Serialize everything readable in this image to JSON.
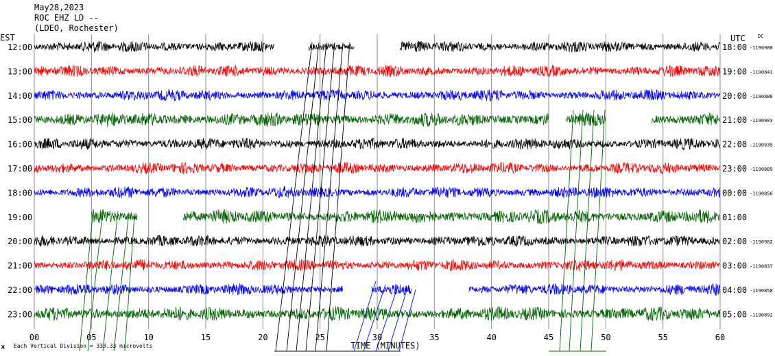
{
  "header": {
    "date": "May28,2023",
    "station": "ROC EHZ LD --",
    "network": "(LDEO, Rochester)"
  },
  "labels": {
    "left_zone": "EST",
    "right_zone": "UTC",
    "dc_header": "DC",
    "xlabel": "TIME (MINUTES)",
    "footnote": "Each Vertical Division = 333.33 microvolts",
    "corner_mark": "Ж"
  },
  "chart_data": {
    "type": "line",
    "title": "",
    "xlabel": "TIME (MINUTES)",
    "xlim": [
      0,
      60
    ],
    "x_ticks": [
      "00",
      "05",
      "10",
      "15",
      "20",
      "25",
      "30",
      "35",
      "40",
      "45",
      "50",
      "55",
      "60"
    ],
    "grid_vertical": true,
    "trace_colors": [
      "#000000",
      "#ff0000",
      "#0000ff",
      "#006400"
    ],
    "rows": [
      {
        "est": "12:00",
        "utc": "18:00",
        "dc": "-1190900",
        "color": "#000000",
        "gaps": [
          [
            21,
            24
          ],
          [
            28,
            32
          ]
        ]
      },
      {
        "est": "13:00",
        "utc": "19:00",
        "dc": "-1190841",
        "color": "#ff0000",
        "gaps": []
      },
      {
        "est": "14:00",
        "utc": "20:00",
        "dc": "-1190880",
        "color": "#0000ff",
        "gaps": []
      },
      {
        "est": "15:00",
        "utc": "21:00",
        "dc": "-1190903",
        "color": "#006400",
        "gaps": [
          [
            45,
            46.5
          ],
          [
            50,
            54
          ]
        ]
      },
      {
        "est": "16:00",
        "utc": "22:00",
        "dc": "-1190935",
        "color": "#000000",
        "gaps": []
      },
      {
        "est": "17:00",
        "utc": "23:00",
        "dc": "-1190889",
        "color": "#ff0000",
        "gaps": []
      },
      {
        "est": "18:00",
        "utc": "00:00",
        "dc": "-1190856",
        "color": "#0000ff",
        "gaps": []
      },
      {
        "est": "19:00",
        "utc": "01:00",
        "dc": "",
        "color": "#006400",
        "gaps": [
          [
            0,
            5
          ],
          [
            9,
            13
          ]
        ]
      },
      {
        "est": "20:00",
        "utc": "02:00",
        "dc": "-1190902",
        "color": "#000000",
        "gaps": []
      },
      {
        "est": "21:00",
        "utc": "03:00",
        "dc": "-1190837",
        "color": "#ff0000",
        "gaps": []
      },
      {
        "est": "22:00",
        "utc": "04:00",
        "dc": "-1190858",
        "color": "#0000ff",
        "gaps": [
          [
            27,
            29.5
          ],
          [
            33,
            38
          ]
        ]
      },
      {
        "est": "23:00",
        "utc": "05:00",
        "dc": "-1190892",
        "color": "#006400",
        "gaps": []
      }
    ]
  }
}
